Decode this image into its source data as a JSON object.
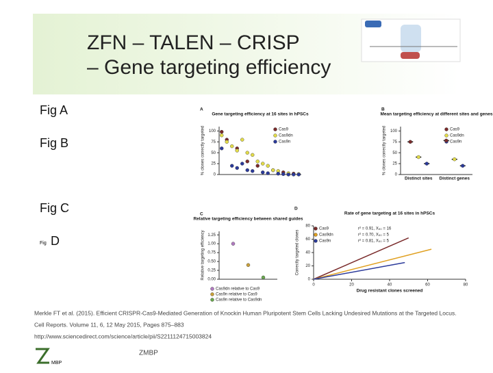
{
  "slide": {
    "title_lines": [
      "ZFN – TALEN – CRISP",
      "– Gene targeting efficiency"
    ],
    "fig_labels": [
      "Fig A",
      "Fig B",
      "Fig C"
    ],
    "fig_d_small": "Fig",
    "fig_d": "D",
    "citation": [
      "Merkle FT et al. (2015). Efficient CRISPR-Cas9-Mediated Generation of Knockin Human Pluripotent Stem Cells Lacking Undesired Mutations at the Targeted Locus.",
      "Cell Reports. Volume 11, 6, 12 May 2015, Pages 875–883",
      "http://www.sciencedirect.com/science/article/pii/S2211124715003824"
    ],
    "footer": "ZMBP",
    "logo_text": "MBP"
  },
  "panels": [
    {
      "letter": "A",
      "title": "Gene targeting efficiency at 16 sites in hPSCs",
      "ylabel": "% clones correctly targeted",
      "ylim": [
        0,
        110
      ],
      "yticks": [
        0,
        25,
        50,
        75,
        100
      ],
      "series": [
        {
          "name": "Cas9",
          "color": "#7a2b2b",
          "values": [
            98,
            80,
            null,
            60,
            null,
            30,
            null,
            20,
            null,
            null,
            10,
            null,
            5,
            null,
            2,
            null
          ]
        },
        {
          "name": "Cas9dn",
          "color": "#e3dc4a",
          "values": [
            90,
            75,
            65,
            55,
            80,
            50,
            45,
            30,
            25,
            20,
            10,
            8,
            null,
            3,
            null,
            1
          ]
        },
        {
          "name": "Cas9n",
          "color": "#2b3a9a",
          "values": [
            60,
            null,
            20,
            15,
            25,
            10,
            8,
            null,
            5,
            3,
            null,
            2,
            1,
            0,
            0,
            0
          ]
        }
      ]
    },
    {
      "letter": "B",
      "title": "Mean targeting efficiency at different sites and genes",
      "ylabel": "% clones correctly targeted",
      "ylim": [
        0,
        110
      ],
      "yticks": [
        0,
        25,
        50,
        75,
        100
      ],
      "categories": [
        "Distinct sites",
        "Distinct genes"
      ],
      "series": [
        {
          "name": "Cas9",
          "color": "#7a2b2b",
          "values": [
            75,
            78
          ]
        },
        {
          "name": "Cas9dn",
          "color": "#e3dc4a",
          "values": [
            40,
            35
          ]
        },
        {
          "name": "Cas9n",
          "color": "#2b3a9a",
          "values": [
            25,
            20
          ]
        }
      ]
    },
    {
      "letter": "C",
      "title": "Relative targeting efficiency between shared guides",
      "ylabel": "Relative targeting efficiency",
      "ylim": [
        0,
        1.35
      ],
      "yticks": [
        {
          "value": 0,
          "label": "0.00"
        },
        {
          "value": 0.25,
          "label": "0.25"
        },
        {
          "value": 0.5,
          "label": "0.50"
        },
        {
          "value": 0.75,
          "label": "0.75"
        },
        {
          "value": 1,
          "label": "1.00"
        },
        {
          "value": 1.25,
          "label": "1.25"
        }
      ],
      "series": [
        {
          "name": "Cas9dn relative to Cas9",
          "color": "#b07ac0",
          "values": [
            1.0
          ]
        },
        {
          "name": "Cas9n relative to Cas9",
          "color": "#c9a03a",
          "values": [
            0.4
          ]
        },
        {
          "name": "Cas9n relative to Cas9dn",
          "color": "#6aa84f",
          "values": [
            0.05
          ]
        }
      ]
    },
    {
      "letter": "D",
      "title": "Rate of gene targeting at 16 sites in hPSCs",
      "xlabel": "Drug resistant clones screened",
      "ylabel": "Correctly targeted clones",
      "xlim": [
        0,
        80
      ],
      "ylim": [
        0,
        80
      ],
      "xticks": [
        0,
        20,
        40,
        60,
        80
      ],
      "yticks": [
        0,
        20,
        40,
        60,
        80
      ],
      "series": [
        {
          "name": "Cas9",
          "color": "#7a2b2b",
          "x": [
            0,
            50
          ],
          "values": [
            0,
            62
          ],
          "note": "r² = 0.91, X₅₀ = 16"
        },
        {
          "name": "Cas9dn",
          "color": "#e0a020",
          "x": [
            0,
            62
          ],
          "values": [
            0,
            45
          ],
          "note": "r² = 0.70, X₅₀ = 5"
        },
        {
          "name": "Cas9n",
          "color": "#2b3a9a",
          "x": [
            0,
            48
          ],
          "values": [
            0,
            25
          ],
          "note": "r² = 0.81, X₅₀ = 5"
        }
      ]
    }
  ]
}
